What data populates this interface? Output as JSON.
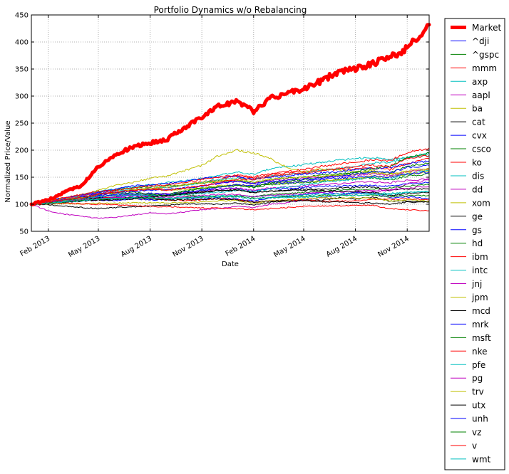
{
  "chart_data": {
    "type": "line",
    "title": "Portfolio Dynamics w/o Rebalancing",
    "xlabel": "Date",
    "ylabel": "Normalized Price/Value",
    "x_range": [
      "2013-01-02",
      "2014-12-10"
    ],
    "ylim": [
      50,
      450
    ],
    "yticks": [
      50,
      100,
      150,
      200,
      250,
      300,
      350,
      400,
      450
    ],
    "xticks": [
      {
        "date": "2013-02-01",
        "label": "Feb 2013"
      },
      {
        "date": "2013-05-01",
        "label": "May 2013"
      },
      {
        "date": "2013-08-01",
        "label": "Aug 2013"
      },
      {
        "date": "2013-11-01",
        "label": "Nov 2013"
      },
      {
        "date": "2014-02-01",
        "label": "Feb 2014"
      },
      {
        "date": "2014-05-01",
        "label": "May 2014"
      },
      {
        "date": "2014-08-01",
        "label": "Aug 2014"
      },
      {
        "date": "2014-11-01",
        "label": "Nov 2014"
      }
    ],
    "grid": true,
    "legend_position": "outside-right",
    "x": [
      "2013-01-02",
      "2013-02-01",
      "2013-03-01",
      "2013-04-01",
      "2013-05-01",
      "2013-06-01",
      "2013-07-01",
      "2013-08-01",
      "2013-09-01",
      "2013-10-01",
      "2013-11-01",
      "2013-12-01",
      "2014-01-01",
      "2014-02-01",
      "2014-03-01",
      "2014-04-01",
      "2014-05-01",
      "2014-06-01",
      "2014-07-01",
      "2014-08-01",
      "2014-09-01",
      "2014-10-01",
      "2014-11-01",
      "2014-12-10"
    ],
    "series": [
      {
        "name": "Market",
        "color": "#ff0000",
        "width": 5,
        "values": [
          100,
          108,
          122,
          135,
          170,
          192,
          205,
          214,
          220,
          242,
          262,
          282,
          290,
          272,
          295,
          305,
          312,
          328,
          345,
          350,
          360,
          372,
          388,
          432
        ]
      },
      {
        "name": "^dji",
        "color": "#0000ff",
        "width": 1,
        "values": [
          100,
          103,
          106,
          110,
          113,
          114,
          116,
          117,
          117,
          120,
          125,
          128,
          130,
          124,
          128,
          129,
          131,
          133,
          134,
          134,
          135,
          133,
          138,
          140
        ]
      },
      {
        "name": "^gspc",
        "color": "#008000",
        "width": 1,
        "values": [
          100,
          104,
          107,
          110,
          114,
          116,
          119,
          120,
          119,
          124,
          129,
          132,
          136,
          131,
          136,
          138,
          140,
          142,
          145,
          147,
          149,
          145,
          152,
          156
        ]
      },
      {
        "name": "mmm",
        "color": "#ff0000",
        "width": 1,
        "values": [
          100,
          104,
          108,
          113,
          118,
          122,
          126,
          128,
          131,
          136,
          141,
          146,
          152,
          148,
          154,
          158,
          161,
          163,
          164,
          165,
          167,
          164,
          175,
          185
        ]
      },
      {
        "name": "axp",
        "color": "#00bfbf",
        "width": 1,
        "values": [
          100,
          106,
          112,
          118,
          124,
          128,
          132,
          136,
          140,
          143,
          148,
          153,
          160,
          155,
          165,
          170,
          173,
          178,
          182,
          184,
          187,
          182,
          186,
          190
        ]
      },
      {
        "name": "aapl",
        "color": "#bf00bf",
        "width": 1,
        "values": [
          100,
          88,
          82,
          78,
          74,
          76,
          80,
          84,
          82,
          86,
          90,
          92,
          96,
          94,
          100,
          103,
          108,
          113,
          116,
          120,
          123,
          126,
          138,
          145
        ]
      },
      {
        "name": "ba",
        "color": "#bfbf00",
        "width": 1,
        "values": [
          100,
          104,
          110,
          117,
          126,
          135,
          140,
          148,
          152,
          162,
          172,
          190,
          200,
          195,
          185,
          168,
          160,
          165,
          163,
          160,
          162,
          155,
          160,
          164
        ]
      },
      {
        "name": "cat",
        "color": "#000000",
        "width": 1,
        "values": [
          100,
          99,
          97,
          94,
          92,
          94,
          95,
          97,
          98,
          100,
          101,
          100,
          102,
          99,
          103,
          106,
          108,
          107,
          112,
          110,
          113,
          106,
          106,
          104
        ]
      },
      {
        "name": "cvx",
        "color": "#0000ff",
        "width": 1,
        "values": [
          100,
          102,
          104,
          106,
          108,
          107,
          110,
          108,
          109,
          112,
          110,
          112,
          110,
          106,
          112,
          115,
          118,
          121,
          119,
          122,
          120,
          112,
          114,
          110
        ]
      },
      {
        "name": "csco",
        "color": "#008000",
        "width": 1,
        "values": [
          100,
          106,
          110,
          112,
          114,
          116,
          118,
          117,
          116,
          118,
          114,
          114,
          116,
          114,
          118,
          120,
          122,
          124,
          126,
          127,
          128,
          130,
          134,
          136
        ]
      },
      {
        "name": "ko",
        "color": "#ff0000",
        "width": 1,
        "values": [
          100,
          102,
          106,
          109,
          112,
          112,
          111,
          110,
          108,
          107,
          108,
          110,
          109,
          104,
          106,
          108,
          108,
          106,
          106,
          107,
          109,
          109,
          110,
          108
        ]
      },
      {
        "name": "dis",
        "color": "#00bfbf",
        "width": 1,
        "values": [
          100,
          104,
          110,
          117,
          123,
          126,
          128,
          130,
          131,
          135,
          140,
          146,
          148,
          146,
          152,
          155,
          158,
          162,
          166,
          170,
          176,
          178,
          186,
          195
        ]
      },
      {
        "name": "dd",
        "color": "#bf00bf",
        "width": 1,
        "values": [
          100,
          104,
          108,
          110,
          114,
          116,
          118,
          118,
          119,
          121,
          124,
          128,
          130,
          126,
          130,
          132,
          134,
          136,
          138,
          140,
          141,
          140,
          144,
          147
        ]
      },
      {
        "name": "xom",
        "color": "#bfbf00",
        "width": 1,
        "values": [
          100,
          101,
          101,
          101,
          102,
          102,
          103,
          103,
          102,
          103,
          104,
          106,
          107,
          102,
          106,
          108,
          110,
          112,
          111,
          112,
          111,
          106,
          108,
          106
        ]
      },
      {
        "name": "ge",
        "color": "#000000",
        "width": 1,
        "values": [
          100,
          104,
          108,
          110,
          112,
          110,
          112,
          114,
          116,
          120,
          124,
          126,
          127,
          122,
          124,
          126,
          128,
          128,
          130,
          131,
          132,
          126,
          128,
          128
        ]
      },
      {
        "name": "gs",
        "color": "#0000ff",
        "width": 1,
        "values": [
          100,
          108,
          112,
          116,
          122,
          128,
          134,
          136,
          138,
          142,
          148,
          150,
          152,
          146,
          150,
          152,
          156,
          158,
          160,
          164,
          166,
          168,
          175,
          180
        ]
      },
      {
        "name": "hd",
        "color": "#008000",
        "width": 1,
        "values": [
          100,
          105,
          110,
          115,
          120,
          126,
          130,
          132,
          134,
          136,
          140,
          142,
          144,
          140,
          146,
          148,
          150,
          154,
          156,
          160,
          166,
          170,
          186,
          195
        ]
      },
      {
        "name": "ibm",
        "color": "#ff0000",
        "width": 1,
        "values": [
          100,
          101,
          102,
          101,
          100,
          99,
          98,
          96,
          95,
          94,
          93,
          93,
          92,
          90,
          92,
          94,
          96,
          97,
          97,
          98,
          98,
          92,
          90,
          88
        ]
      },
      {
        "name": "intc",
        "color": "#00bfbf",
        "width": 1,
        "values": [
          100,
          103,
          106,
          110,
          114,
          116,
          118,
          117,
          116,
          118,
          120,
          122,
          126,
          124,
          128,
          132,
          136,
          140,
          144,
          146,
          150,
          146,
          156,
          162
        ]
      },
      {
        "name": "jnj",
        "color": "#bf00bf",
        "width": 1,
        "values": [
          100,
          104,
          110,
          116,
          120,
          124,
          126,
          128,
          126,
          130,
          134,
          138,
          142,
          138,
          144,
          146,
          148,
          150,
          152,
          154,
          156,
          154,
          160,
          166
        ]
      },
      {
        "name": "jpm",
        "color": "#bfbf00",
        "width": 1,
        "values": [
          100,
          106,
          110,
          114,
          118,
          122,
          126,
          128,
          126,
          128,
          130,
          134,
          136,
          134,
          138,
          140,
          142,
          144,
          146,
          148,
          152,
          150,
          156,
          160
        ]
      },
      {
        "name": "mcd",
        "color": "#000000",
        "width": 1,
        "values": [
          100,
          102,
          104,
          106,
          108,
          108,
          110,
          110,
          108,
          108,
          109,
          110,
          108,
          104,
          106,
          106,
          106,
          105,
          104,
          103,
          102,
          100,
          104,
          104
        ]
      },
      {
        "name": "mrk",
        "color": "#0000ff",
        "width": 1,
        "values": [
          100,
          104,
          108,
          112,
          116,
          118,
          120,
          120,
          118,
          122,
          126,
          132,
          136,
          134,
          140,
          140,
          142,
          146,
          148,
          150,
          152,
          150,
          156,
          160
        ]
      },
      {
        "name": "msft",
        "color": "#008000",
        "width": 1,
        "values": [
          100,
          102,
          106,
          112,
          118,
          120,
          122,
          118,
          116,
          124,
          130,
          132,
          134,
          132,
          140,
          142,
          146,
          150,
          154,
          158,
          160,
          158,
          170,
          176
        ]
      },
      {
        "name": "nke",
        "color": "#ff0000",
        "width": 1,
        "values": [
          100,
          106,
          112,
          118,
          124,
          126,
          130,
          134,
          136,
          140,
          146,
          150,
          154,
          150,
          156,
          160,
          164,
          170,
          174,
          178,
          182,
          180,
          196,
          204
        ]
      },
      {
        "name": "pfe",
        "color": "#00bfbf",
        "width": 1,
        "values": [
          100,
          103,
          106,
          108,
          110,
          110,
          112,
          112,
          111,
          113,
          115,
          116,
          116,
          114,
          116,
          116,
          117,
          118,
          119,
          120,
          121,
          120,
          122,
          124
        ]
      },
      {
        "name": "pg",
        "color": "#bf00bf",
        "width": 1,
        "values": [
          100,
          103,
          105,
          108,
          111,
          112,
          114,
          114,
          113,
          114,
          116,
          118,
          118,
          114,
          116,
          118,
          120,
          122,
          123,
          124,
          126,
          126,
          130,
          133
        ]
      },
      {
        "name": "trv",
        "color": "#bfbf00",
        "width": 1,
        "values": [
          100,
          104,
          108,
          112,
          118,
          122,
          126,
          130,
          132,
          136,
          140,
          143,
          146,
          141,
          146,
          148,
          150,
          152,
          154,
          156,
          158,
          156,
          162,
          166
        ]
      },
      {
        "name": "utx",
        "color": "#000000",
        "width": 1,
        "values": [
          100,
          102,
          104,
          106,
          108,
          110,
          112,
          114,
          116,
          119,
          122,
          125,
          126,
          122,
          124,
          126,
          126,
          125,
          124,
          123,
          122,
          116,
          120,
          122
        ]
      },
      {
        "name": "unh",
        "color": "#0000ff",
        "width": 1,
        "values": [
          100,
          104,
          108,
          114,
          118,
          122,
          124,
          126,
          128,
          130,
          134,
          140,
          142,
          138,
          142,
          144,
          146,
          148,
          152,
          156,
          160,
          158,
          168,
          172
        ]
      },
      {
        "name": "vz",
        "color": "#008000",
        "width": 1,
        "values": [
          100,
          102,
          104,
          107,
          110,
          110,
          112,
          112,
          110,
          112,
          113,
          114,
          114,
          111,
          112,
          114,
          115,
          116,
          116,
          117,
          116,
          114,
          116,
          116
        ]
      },
      {
        "name": "v",
        "color": "#ff0000",
        "width": 1,
        "values": [
          100,
          104,
          108,
          112,
          118,
          122,
          126,
          128,
          126,
          130,
          134,
          140,
          146,
          146,
          152,
          156,
          158,
          162,
          166,
          170,
          172,
          170,
          184,
          190
        ]
      },
      {
        "name": "wmt",
        "color": "#00bfbf",
        "width": 1,
        "values": [
          100,
          102,
          104,
          106,
          110,
          110,
          112,
          112,
          110,
          112,
          113,
          114,
          114,
          110,
          112,
          112,
          113,
          114,
          116,
          117,
          118,
          118,
          122,
          124
        ]
      }
    ]
  }
}
